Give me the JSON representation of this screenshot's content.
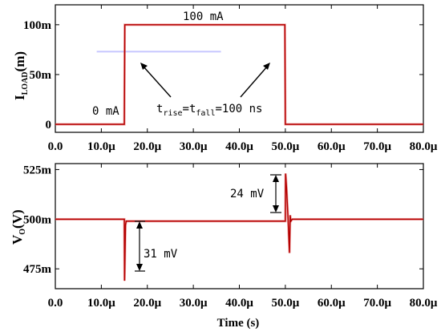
{
  "chart_data": [
    {
      "type": "line",
      "ylabel_main": "I",
      "ylabel_sub": "LOAD",
      "ylabel_tail": "(m)",
      "xlabel": "",
      "xlim": [
        0,
        80
      ],
      "ylim": [
        -8,
        120
      ],
      "x_ticks": [
        0,
        10,
        20,
        30,
        40,
        50,
        60,
        70,
        80
      ],
      "x_tick_labels": [
        "0.0",
        "10.0μ",
        "20.0μ",
        "30.0μ",
        "40.0μ",
        "50.0μ",
        "60.0μ",
        "70.0μ",
        "80.0μ"
      ],
      "y_ticks": [
        0,
        50,
        100
      ],
      "y_tick_labels": [
        "0",
        "50m",
        "100m"
      ],
      "series": [
        {
          "color": "#b40000",
          "x": [
            0,
            15,
            15.1,
            49.9,
            50,
            80
          ],
          "y": [
            0,
            0,
            100,
            100,
            0,
            0
          ]
        }
      ],
      "annotations": {
        "low_label": "0 mA",
        "high_label": "100 mA",
        "trise_t": "t",
        "trise_sub": "rise",
        "eq": "=t",
        "tfall_sub": "fall",
        "trise_tail": "=100 ns"
      },
      "reference_line": {
        "x": [
          9,
          36
        ],
        "y": 73,
        "color": "#c6c6ff"
      }
    },
    {
      "type": "line",
      "ylabel_main": "V",
      "ylabel_sub": "O",
      "ylabel_tail": "(V)",
      "xlabel": "Time (s)",
      "xlim": [
        0,
        80
      ],
      "ylim": [
        465,
        528
      ],
      "x_ticks": [
        0,
        10,
        20,
        30,
        40,
        50,
        60,
        70,
        80
      ],
      "x_tick_labels": [
        "0.0",
        "10.0μ",
        "20.0μ",
        "30.0μ",
        "40.0μ",
        "50.0μ",
        "60.0μ",
        "70.0μ",
        "80.0μ"
      ],
      "y_ticks": [
        475,
        500,
        525
      ],
      "y_tick_labels": [
        "475m",
        "500m",
        "525m"
      ],
      "series": [
        {
          "color": "#b40000",
          "x": [
            0,
            15,
            15.05,
            15.25,
            15.4,
            16,
            50,
            50.05,
            50.25,
            50.6,
            50.9,
            51.05,
            51.2,
            51.5,
            52,
            80
          ],
          "y": [
            500,
            500,
            469,
            497,
            499,
            499,
            499,
            523,
            516,
            500,
            483,
            502,
            499,
            500,
            500,
            500
          ]
        }
      ],
      "annotations": {
        "undershoot_label": "31 mV",
        "overshoot_label": "24 mV"
      }
    }
  ]
}
